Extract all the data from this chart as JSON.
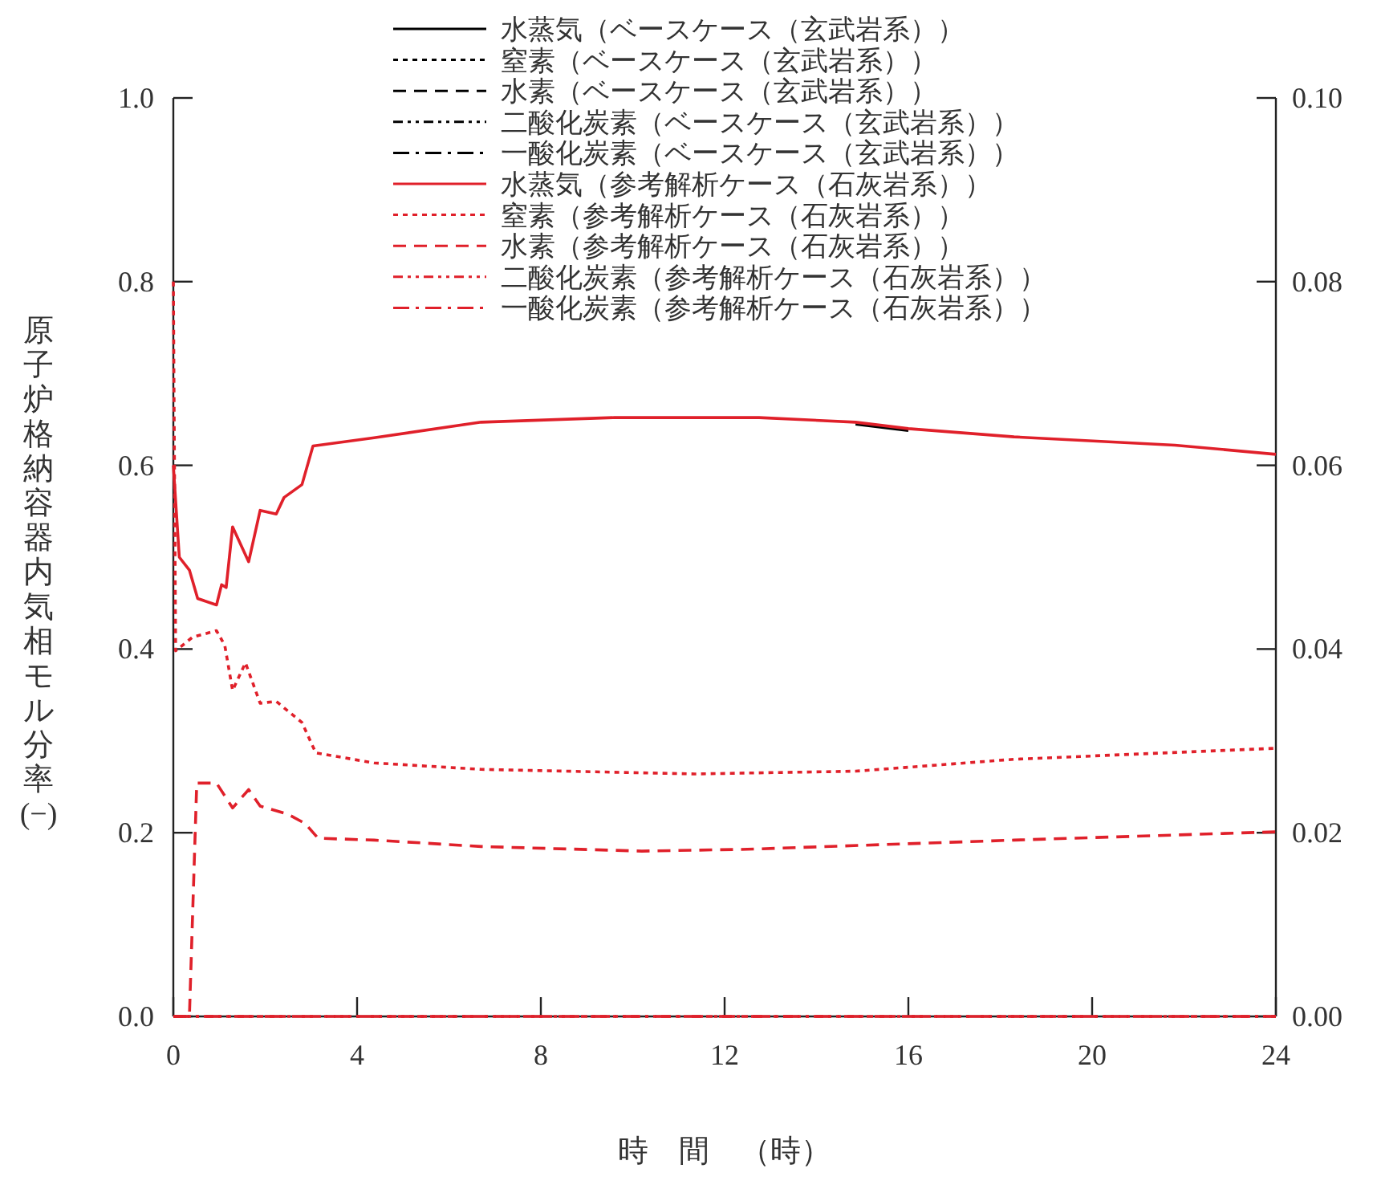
{
  "chart_data": {
    "type": "line",
    "xlabel": "時　間　（時）",
    "ylabel": "原子炉格納容器内気相モル分率(−)",
    "xlim": [
      0,
      24
    ],
    "xticks": [
      0,
      4,
      8,
      12,
      16,
      20,
      24
    ],
    "ylim": [
      0,
      1
    ],
    "yticks": [
      {
        "value": 0,
        "label": "0.0"
      },
      {
        "value": 0.2,
        "label": "0.2"
      },
      {
        "value": 0.4,
        "label": "0.4"
      },
      {
        "value": 0.6,
        "label": "0.6"
      },
      {
        "value": 0.8,
        "label": "0.8"
      },
      {
        "value": 1,
        "label": "1.0"
      }
    ],
    "y2lim": [
      0,
      0.1
    ],
    "y2ticks": [
      {
        "value": 0,
        "label": "0.00"
      },
      {
        "value": 0.02,
        "label": "0.02"
      },
      {
        "value": 0.04,
        "label": "0.04"
      },
      {
        "value": 0.06,
        "label": "0.06"
      },
      {
        "value": 0.08,
        "label": "0.08"
      },
      {
        "value": 0.1,
        "label": "0.10"
      }
    ],
    "legend": "top",
    "grid": false,
    "marker": "none",
    "series": [
      {
        "name": "水蒸気（ベースケース（玄武岩系））",
        "color": "#000000",
        "line_style": "solid",
        "x": [
          14.85,
          16
        ],
        "values": [
          0.645,
          0.638
        ]
      },
      {
        "name": "窒素（ベースケース（玄武岩系））",
        "color": "#000000",
        "line_style": "dotted"
      },
      {
        "name": "水素（ベースケース（玄武岩系））",
        "color": "#000000",
        "line_style": "dashed"
      },
      {
        "name": "二酸化炭素（ベースケース（玄武岩系））",
        "color": "#000000",
        "line_style": "dashdotdot"
      },
      {
        "name": "一酸化炭素（ベースケース（玄武岩系））",
        "color": "#000000",
        "line_style": "dashdot"
      },
      {
        "name": "水蒸気（参考解析ケース（石灰岩系））",
        "color": "#e0202a",
        "line_style": "solid",
        "x": [
          0,
          0.13,
          0.35,
          0.53,
          0.94,
          1.05,
          1.15,
          1.29,
          1.64,
          1.89,
          2.24,
          2.41,
          2.8,
          3.04,
          4.37,
          6.7,
          9.6,
          12.75,
          14.85,
          16,
          18.3,
          21.8,
          24
        ],
        "values": [
          0.6,
          0.5,
          0.486,
          0.455,
          0.448,
          0.47,
          0.467,
          0.533,
          0.495,
          0.551,
          0.547,
          0.565,
          0.579,
          0.621,
          0.63,
          0.647,
          0.652,
          0.652,
          0.647,
          0.64,
          0.631,
          0.622,
          0.612
        ]
      },
      {
        "name": "窒素（参考解析ケース（石灰岩系））",
        "color": "#e0202a",
        "line_style": "dotted",
        "x": [
          0,
          0.05,
          0.42,
          0.94,
          1.12,
          1.29,
          1.57,
          1.89,
          2.24,
          2.8,
          3.1,
          4.37,
          6.7,
          11.35,
          14.85,
          18.3,
          24
        ],
        "values": [
          0.8,
          0.398,
          0.413,
          0.42,
          0.404,
          0.355,
          0.385,
          0.341,
          0.343,
          0.32,
          0.287,
          0.276,
          0.269,
          0.264,
          0.267,
          0.28,
          0.292
        ]
      },
      {
        "name": "水素（参考解析ケース（石灰岩系））",
        "color": "#e0202a",
        "line_style": "dashed",
        "x": [
          0,
          0.35,
          0.51,
          0.94,
          1.29,
          1.64,
          1.89,
          2.5,
          2.87,
          3.15,
          4.37,
          6.7,
          10.2,
          12.5,
          15.4,
          18.3,
          24
        ],
        "values": [
          0,
          0,
          0.254,
          0.254,
          0.227,
          0.247,
          0.229,
          0.22,
          0.21,
          0.194,
          0.192,
          0.185,
          0.18,
          0.182,
          0.187,
          0.192,
          0.201
        ]
      },
      {
        "name": "二酸化炭素（参考解析ケース（石灰岩系））",
        "color": "#e0202a",
        "line_style": "dashdotdot",
        "x": [
          0,
          24
        ],
        "values": [
          0,
          0
        ]
      },
      {
        "name": "一酸化炭素（参考解析ケース（石灰岩系））",
        "color": "#e0202a",
        "line_style": "dashdot",
        "x": [
          0,
          24
        ],
        "values": [
          0,
          0
        ]
      }
    ]
  }
}
